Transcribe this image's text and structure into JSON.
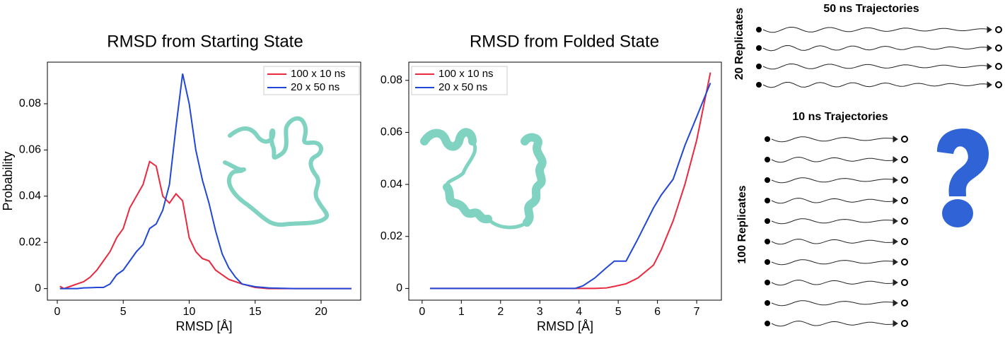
{
  "chart_data": [
    {
      "type": "line",
      "title": "RMSD from Starting State",
      "xlabel": "RMSD [Å]",
      "ylabel": "Probability",
      "x": [
        0.2,
        0.5,
        1,
        1.5,
        2,
        2.5,
        3,
        3.5,
        4,
        4.5,
        5,
        5.5,
        6,
        6.5,
        7,
        7.5,
        8,
        8.5,
        9,
        9.5,
        10,
        10.5,
        11,
        11.5,
        12,
        12.5,
        13,
        13.5,
        14,
        15,
        16,
        18,
        20,
        22.3
      ],
      "series": [
        {
          "name": "100 x 10 ns",
          "color": "#e8293f",
          "values": [
            0.001,
            0,
            0.001,
            0.002,
            0.003,
            0.005,
            0.008,
            0.012,
            0.016,
            0.022,
            0.026,
            0.035,
            0.04,
            0.045,
            0.055,
            0.053,
            0.04,
            0.037,
            0.041,
            0.038,
            0.022,
            0.016,
            0.013,
            0.012,
            0.008,
            0.006,
            0.004,
            0.003,
            0.002,
            0.0005,
            0,
            0,
            0,
            0
          ]
        },
        {
          "name": "20 x 50 ns",
          "color": "#2147d6",
          "values": [
            0,
            0,
            0,
            0,
            0.0003,
            0.0004,
            0.0005,
            0.0005,
            0.002,
            0.006,
            0.008,
            0.012,
            0.016,
            0.019,
            0.026,
            0.028,
            0.034,
            0.045,
            0.07,
            0.093,
            0.08,
            0.06,
            0.047,
            0.037,
            0.025,
            0.015,
            0.009,
            0.005,
            0.002,
            0.0008,
            0.0003,
            0,
            0,
            0
          ]
        }
      ],
      "xlim": [
        -0.75,
        23
      ],
      "xticks": [
        0,
        5,
        10,
        15,
        20
      ],
      "ylim": [
        -0.005,
        0.098
      ],
      "yticks": [
        0,
        0.02,
        0.04,
        0.06,
        0.08
      ],
      "legend": "upper right"
    },
    {
      "type": "line",
      "title": "RMSD from  Folded State",
      "xlabel": "RMSD [Å]",
      "x": [
        0.2,
        1,
        2,
        3,
        3.5,
        3.9,
        4.1,
        4.4,
        4.7,
        4.9,
        5.2,
        5.5,
        5.9,
        6.1,
        6.4,
        6.7,
        7.0,
        7.35
      ],
      "series": [
        {
          "name": "100 x 10 ns",
          "color": "#e8293f",
          "values": [
            0,
            0,
            0,
            0,
            0,
            0,
            0,
            0,
            0.0002,
            0.0008,
            0.0018,
            0.004,
            0.009,
            0.015,
            0.026,
            0.04,
            0.057,
            0.083
          ]
        },
        {
          "name": "20 x 50 ns",
          "color": "#2147d6",
          "values": [
            0,
            0,
            0,
            0,
            0,
            0,
            0.001,
            0.004,
            0.008,
            0.0105,
            0.0105,
            0.019,
            0.031,
            0.036,
            0.042,
            0.055,
            0.066,
            0.079
          ]
        }
      ],
      "xlim": [
        -0.34,
        7.63
      ],
      "xticks": [
        0,
        1,
        2,
        3,
        4,
        5,
        6,
        7
      ],
      "ylim": [
        -0.0045,
        0.087
      ],
      "yticks": [
        0,
        0.02,
        0.04,
        0.06,
        0.08
      ],
      "legend": "upper left"
    }
  ],
  "diagram": {
    "top_title": "50 ns Trajectories",
    "top_label": "20 Replicates",
    "bottom_title": "10 ns Trajectories",
    "bottom_label": "100 Replicates"
  }
}
